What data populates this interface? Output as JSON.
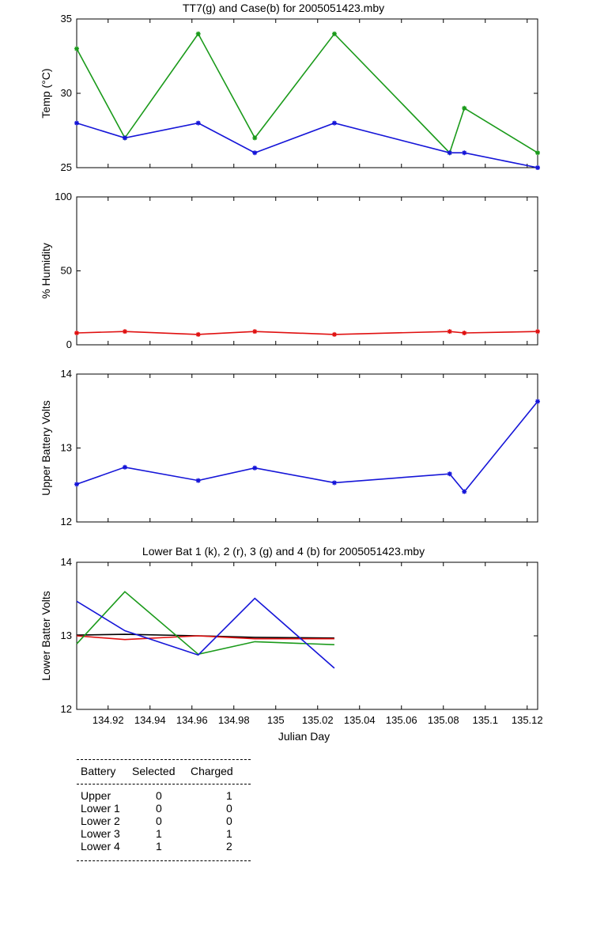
{
  "chart_data": [
    {
      "type": "line",
      "title": "TT7(g) and Case(b) for 2005051423.mby",
      "xlabel": "",
      "ylabel": "Temp  (°C)",
      "xlim": [
        134.905,
        135.125
      ],
      "ylim": [
        25,
        35
      ],
      "yticks": [
        25,
        30,
        35
      ],
      "xticks": [
        134.92,
        134.94,
        134.96,
        134.98,
        135,
        135.02,
        135.04,
        135.06,
        135.08,
        135.1,
        135.12
      ],
      "show_xticklabels": false,
      "series": [
        {
          "color": "#1a9a1a",
          "x": [
            134.905,
            134.928,
            134.963,
            134.99,
            135.028,
            135.083,
            135.09,
            135.125
          ],
          "y": [
            33,
            27,
            34,
            27,
            34,
            26,
            29,
            26
          ]
        },
        {
          "color": "#1515d8",
          "x": [
            134.905,
            134.928,
            134.963,
            134.99,
            135.028,
            135.083,
            135.09,
            135.125
          ],
          "y": [
            28,
            27,
            28,
            26,
            28,
            26,
            26,
            25
          ]
        }
      ]
    },
    {
      "type": "line",
      "title": "",
      "xlabel": "",
      "ylabel": "% Humidity",
      "xlim": [
        134.905,
        135.125
      ],
      "ylim": [
        0,
        100
      ],
      "yticks": [
        0,
        50,
        100
      ],
      "xticks": [
        134.92,
        134.94,
        134.96,
        134.98,
        135,
        135.02,
        135.04,
        135.06,
        135.08,
        135.1,
        135.12
      ],
      "show_xticklabels": false,
      "series": [
        {
          "color": "#e01010",
          "x": [
            134.905,
            134.928,
            134.963,
            134.99,
            135.028,
            135.083,
            135.09,
            135.125
          ],
          "y": [
            8,
            9,
            7,
            9,
            7,
            9,
            8,
            9
          ]
        }
      ]
    },
    {
      "type": "line",
      "title": "",
      "xlabel": "",
      "ylabel": "Upper Battery Volts",
      "xlim": [
        134.905,
        135.125
      ],
      "ylim": [
        12,
        14
      ],
      "yticks": [
        12,
        13,
        14
      ],
      "xticks": [
        134.92,
        134.94,
        134.96,
        134.98,
        135,
        135.02,
        135.04,
        135.06,
        135.08,
        135.1,
        135.12
      ],
      "show_xticklabels": false,
      "series": [
        {
          "color": "#1515d8",
          "x": [
            134.905,
            134.928,
            134.963,
            134.99,
            135.028,
            135.083,
            135.09,
            135.125
          ],
          "y": [
            12.51,
            12.74,
            12.56,
            12.73,
            12.53,
            12.65,
            12.41,
            13.63
          ]
        }
      ]
    },
    {
      "type": "line",
      "title": "Lower Bat 1 (k), 2 (r), 3 (g) and 4 (b) for 2005051423.mby",
      "xlabel": "Julian Day",
      "ylabel": "Lower Batter Volts",
      "xlim": [
        134.905,
        135.125
      ],
      "ylim": [
        12,
        14
      ],
      "yticks": [
        12,
        13,
        14
      ],
      "xticks": [
        134.92,
        134.94,
        134.96,
        134.98,
        135,
        135.02,
        135.04,
        135.06,
        135.08,
        135.1,
        135.12
      ],
      "xticklabels": [
        "134.92",
        "134.94",
        "134.96",
        "134.98",
        "135",
        "135.02",
        "135.04",
        "135.06",
        "135.08",
        "135.1",
        "135.12"
      ],
      "show_xticklabels": true,
      "series": [
        {
          "color": "#000000",
          "x": [
            134.905,
            134.928,
            134.963,
            134.99,
            135.028
          ],
          "y": [
            13.01,
            13.02,
            13.0,
            12.98,
            12.97
          ]
        },
        {
          "color": "#e01010",
          "x": [
            134.905,
            134.928,
            134.963,
            134.99,
            135.028
          ],
          "y": [
            13.0,
            12.95,
            13.0,
            12.96,
            12.96
          ]
        },
        {
          "color": "#1a9a1a",
          "x": [
            134.905,
            134.928,
            134.963,
            134.99,
            135.028
          ],
          "y": [
            12.89,
            13.6,
            12.75,
            12.92,
            12.88
          ]
        },
        {
          "color": "#1515d8",
          "x": [
            134.905,
            134.928,
            134.963,
            134.99,
            135.028
          ],
          "y": [
            13.47,
            13.07,
            12.74,
            13.51,
            12.56
          ]
        }
      ]
    }
  ],
  "table": {
    "headers": [
      "Battery",
      "Selected",
      "Charged"
    ],
    "rows": [
      {
        "battery": "Upper",
        "selected": "0",
        "charged": "1"
      },
      {
        "battery": "Lower 1",
        "selected": "0",
        "charged": "0"
      },
      {
        "battery": "Lower 2",
        "selected": "0",
        "charged": "0"
      },
      {
        "battery": "Lower 3",
        "selected": "1",
        "charged": "1"
      },
      {
        "battery": "Lower 4",
        "selected": "1",
        "charged": "2"
      }
    ]
  }
}
